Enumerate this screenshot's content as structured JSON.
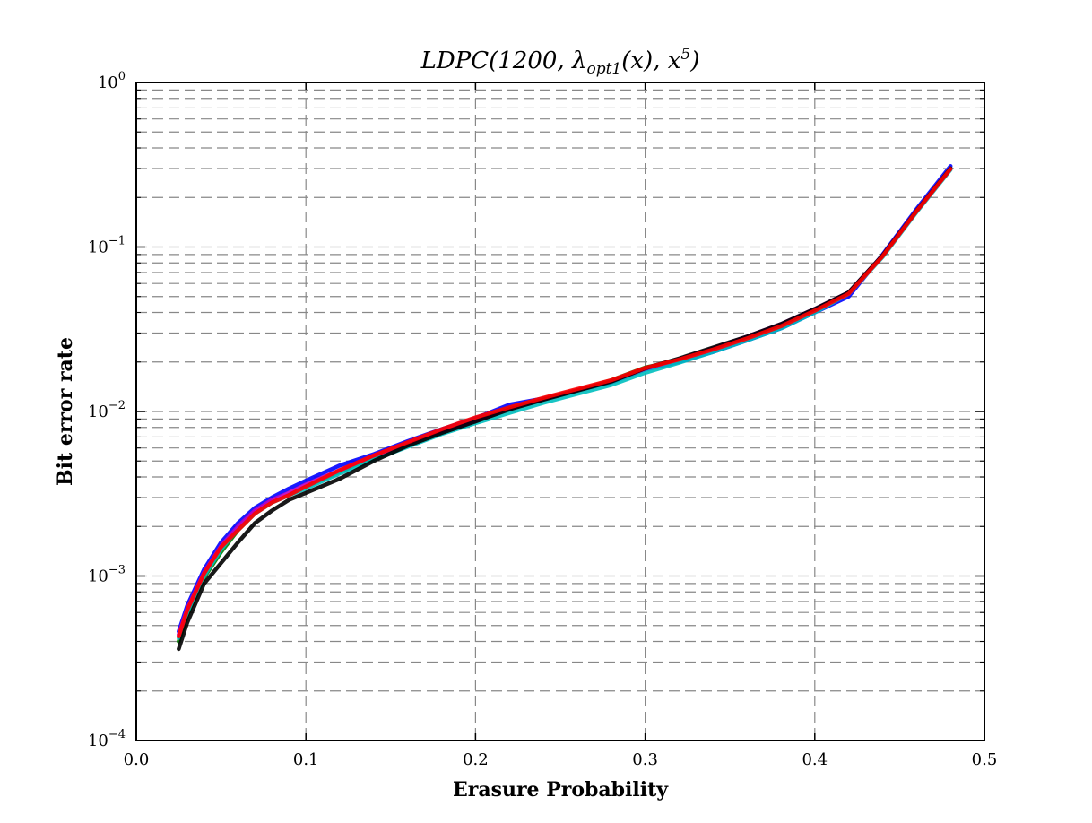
{
  "chart_data": {
    "type": "line",
    "title": "LDPC(1200, λopt1(x), x5)",
    "title_parts": {
      "main": "LDPC(1200, λ",
      "sub": "opt1",
      "mid": "(x), x",
      "sup": "5",
      "end": ")"
    },
    "xlabel": "Erasure Probability",
    "ylabel": "Bit error rate",
    "xlim": [
      0.0,
      0.5
    ],
    "ylim": [
      0.0001,
      1
    ],
    "yscale": "log",
    "grid": true,
    "grid_style": "dashed",
    "x_ticks": [
      0.0,
      0.1,
      0.2,
      0.3,
      0.4,
      0.5
    ],
    "x_tick_labels": [
      "0.0",
      "0.1",
      "0.2",
      "0.3",
      "0.4",
      "0.5"
    ],
    "y_ticks": [
      0.0001,
      0.001,
      0.01,
      0.1,
      1
    ],
    "y_tick_labels": [
      {
        "base": "10",
        "exp": "−4"
      },
      {
        "base": "10",
        "exp": "−3"
      },
      {
        "base": "10",
        "exp": "−2"
      },
      {
        "base": "10",
        "exp": "−1"
      },
      {
        "base": "10",
        "exp": "0"
      }
    ],
    "series": [
      {
        "color": "#0000ff",
        "x": [
          0.025,
          0.03,
          0.04,
          0.05,
          0.06,
          0.07,
          0.08,
          0.09,
          0.1,
          0.12,
          0.14,
          0.16,
          0.18,
          0.2,
          0.22,
          0.24,
          0.26,
          0.28,
          0.3,
          0.32,
          0.34,
          0.36,
          0.38,
          0.4,
          0.42,
          0.44,
          0.46,
          0.48
        ],
        "y": [
          0.00046,
          0.00066,
          0.0011,
          0.0016,
          0.0021,
          0.0026,
          0.003,
          0.0034,
          0.0038,
          0.0047,
          0.0055,
          0.0066,
          0.0078,
          0.0091,
          0.011,
          0.012,
          0.0135,
          0.015,
          0.018,
          0.02,
          0.023,
          0.027,
          0.032,
          0.04,
          0.05,
          0.09,
          0.17,
          0.31
        ]
      },
      {
        "color": "#008000",
        "x": [
          0.025,
          0.03,
          0.04,
          0.05,
          0.06,
          0.07,
          0.08,
          0.09,
          0.1,
          0.12,
          0.14,
          0.16,
          0.18,
          0.2,
          0.22,
          0.24,
          0.26,
          0.28,
          0.3,
          0.32,
          0.34,
          0.36,
          0.38,
          0.4,
          0.42,
          0.44,
          0.46,
          0.48
        ],
        "y": [
          0.0004,
          0.00058,
          0.00098,
          0.0014,
          0.0019,
          0.0024,
          0.0028,
          0.0031,
          0.0035,
          0.0043,
          0.0053,
          0.0064,
          0.0076,
          0.0089,
          0.0105,
          0.012,
          0.0135,
          0.0155,
          0.0185,
          0.0205,
          0.024,
          0.028,
          0.033,
          0.041,
          0.053,
          0.088,
          0.165,
          0.3
        ]
      },
      {
        "color": "#00bfbf",
        "x": [
          0.025,
          0.03,
          0.04,
          0.05,
          0.06,
          0.07,
          0.08,
          0.09,
          0.1,
          0.12,
          0.14,
          0.16,
          0.18,
          0.2,
          0.22,
          0.24,
          0.26,
          0.28,
          0.3,
          0.32,
          0.34,
          0.36,
          0.38,
          0.4,
          0.42,
          0.44,
          0.46,
          0.48
        ],
        "y": [
          0.00042,
          0.0006,
          0.001,
          0.00145,
          0.00195,
          0.0024,
          0.0028,
          0.0031,
          0.0034,
          0.0042,
          0.0051,
          0.0061,
          0.0073,
          0.0085,
          0.0098,
          0.0113,
          0.0128,
          0.0145,
          0.0172,
          0.0198,
          0.023,
          0.027,
          0.032,
          0.04,
          0.052,
          0.087,
          0.163,
          0.295
        ]
      },
      {
        "color": "#bf00bf",
        "x": [
          0.025,
          0.03,
          0.04,
          0.05,
          0.06,
          0.07,
          0.08,
          0.09,
          0.1,
          0.12,
          0.14,
          0.16,
          0.18,
          0.2,
          0.22,
          0.24,
          0.26,
          0.28,
          0.3,
          0.32,
          0.34,
          0.36,
          0.38,
          0.4,
          0.42,
          0.44,
          0.46,
          0.48
        ],
        "y": [
          0.00044,
          0.00063,
          0.00105,
          0.00152,
          0.002,
          0.0025,
          0.0029,
          0.0032,
          0.0036,
          0.0044,
          0.0054,
          0.0064,
          0.0076,
          0.0088,
          0.0104,
          0.0119,
          0.0135,
          0.0153,
          0.0182,
          0.0208,
          0.0242,
          0.0285,
          0.034,
          0.042,
          0.053,
          0.089,
          0.166,
          0.3
        ]
      },
      {
        "color": "#000000",
        "x": [
          0.025,
          0.03,
          0.04,
          0.05,
          0.06,
          0.07,
          0.08,
          0.09,
          0.1,
          0.12,
          0.14,
          0.16,
          0.18,
          0.2,
          0.22,
          0.24,
          0.26,
          0.28,
          0.3,
          0.32,
          0.34,
          0.36,
          0.38,
          0.4,
          0.42,
          0.44,
          0.46,
          0.48
        ],
        "y": [
          0.00036,
          0.00052,
          0.0009,
          0.0012,
          0.0016,
          0.0021,
          0.0025,
          0.0029,
          0.0032,
          0.0039,
          0.005,
          0.0062,
          0.0074,
          0.0087,
          0.0103,
          0.0118,
          0.0134,
          0.0152,
          0.0183,
          0.021,
          0.0245,
          0.0285,
          0.034,
          0.042,
          0.053,
          0.089,
          0.166,
          0.3
        ]
      },
      {
        "color": "#ff0000",
        "x": [
          0.025,
          0.03,
          0.04,
          0.05,
          0.06,
          0.07,
          0.08,
          0.09,
          0.1,
          0.12,
          0.14,
          0.16,
          0.18,
          0.2,
          0.22,
          0.24,
          0.26,
          0.28,
          0.3,
          0.32,
          0.34,
          0.36,
          0.38,
          0.4,
          0.42,
          0.44,
          0.46,
          0.48
        ],
        "y": [
          0.00043,
          0.00062,
          0.00104,
          0.0015,
          0.0019,
          0.0024,
          0.0028,
          0.0031,
          0.0035,
          0.0044,
          0.0054,
          0.0065,
          0.0078,
          0.0092,
          0.0106,
          0.0121,
          0.0137,
          0.0155,
          0.0184,
          0.0207,
          0.0238,
          0.0278,
          0.033,
          0.041,
          0.052,
          0.088,
          0.165,
          0.298
        ]
      }
    ]
  }
}
